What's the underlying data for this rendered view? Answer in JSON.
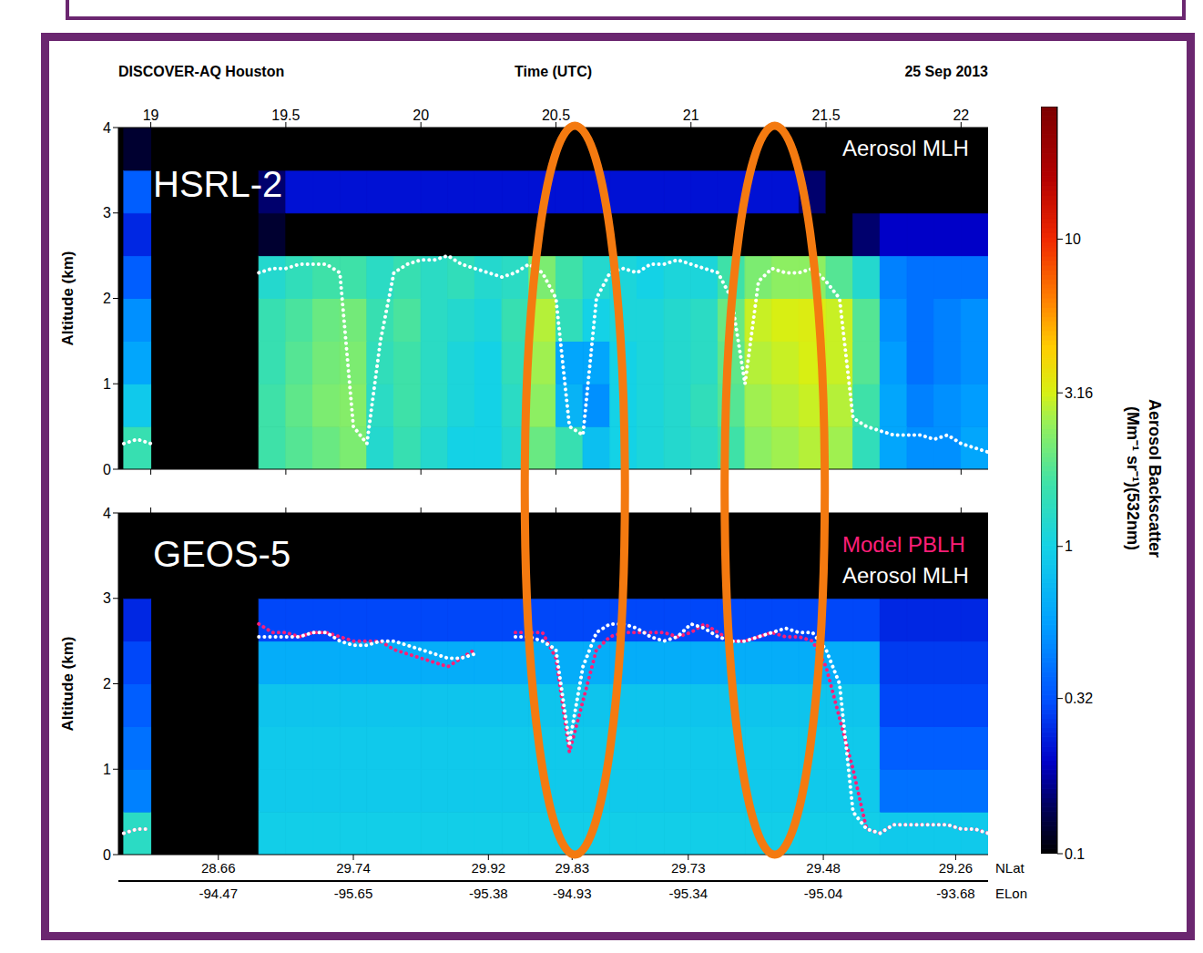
{
  "chart_data": {
    "type": "heatmap",
    "title": "DISCOVER-AQ Houston",
    "subtitle": "25 Sep 2013",
    "x_label": "Time (UTC)",
    "y_label": "Altitude (km)",
    "xlim": [
      18.88,
      22.1
    ],
    "xticks": [
      19,
      19.5,
      20,
      20.5,
      21,
      21.5,
      22
    ],
    "ylim": [
      0,
      4
    ],
    "yticks": [
      0,
      1,
      2,
      3,
      4
    ],
    "grid": false,
    "legend": "upper right",
    "track_axis": {
      "labels": [
        "NLat",
        "ELon"
      ],
      "ticks": [
        {
          "x": 19.25,
          "NLat": 28.66,
          "ELon": -94.47
        },
        {
          "x": 19.75,
          "NLat": 29.74,
          "ELon": -95.65
        },
        {
          "x": 20.25,
          "NLat": 29.92,
          "ELon": -95.38
        },
        {
          "x": 20.56,
          "NLat": 29.83,
          "ELon": -94.93
        },
        {
          "x": 20.99,
          "NLat": 29.73,
          "ELon": -95.34
        },
        {
          "x": 21.49,
          "NLat": 29.48,
          "ELon": -95.04
        },
        {
          "x": 21.98,
          "NLat": 29.26,
          "ELon": -93.68
        }
      ]
    },
    "highlights": [
      20.57,
      21.31
    ],
    "colorbar": {
      "label": "Aerosol Backscatter (Mm⁻¹ sr⁻¹)(532nm)",
      "range": [
        0.1,
        27
      ],
      "ticks": [
        0.1,
        0.32,
        1,
        3.16,
        10
      ],
      "log": true
    },
    "time_edges": [
      18.9,
      19,
      19.1,
      19.2,
      19.3,
      19.4,
      19.5,
      19.6,
      19.7,
      19.8,
      19.9,
      20,
      20.1,
      20.2,
      20.3,
      20.4,
      20.5,
      20.6,
      20.7,
      20.8,
      20.9,
      21,
      21.1,
      21.2,
      21.3,
      21.4,
      21.5,
      21.6,
      21.7,
      21.8,
      21.9,
      22,
      22.1
    ],
    "altitude_edges": [
      0,
      0.5,
      1,
      1.5,
      2,
      2.5,
      3,
      3.5,
      4
    ],
    "x": [
      18.9,
      18.95,
      19,
      19.05,
      19.1,
      19.15,
      19.2,
      19.25,
      19.3,
      19.35,
      19.4,
      19.45,
      19.5,
      19.55,
      19.6,
      19.65,
      19.7,
      19.75,
      19.8,
      19.85,
      19.9,
      19.95,
      20,
      20.05,
      20.1,
      20.15,
      20.2,
      20.25,
      20.3,
      20.35,
      20.4,
      20.45,
      20.5,
      20.55,
      20.6,
      20.65,
      20.7,
      20.75,
      20.8,
      20.85,
      20.9,
      20.95,
      21,
      21.05,
      21.1,
      21.15,
      21.2,
      21.25,
      21.3,
      21.35,
      21.4,
      21.45,
      21.5,
      21.55,
      21.6,
      21.65,
      21.7,
      21.75,
      21.8,
      21.85,
      21.9,
      21.95,
      22,
      22.05,
      22.1
    ],
    "panels": [
      {
        "title": "HSRL-2",
        "backscatter": [
          [
            1.5,
            null,
            null,
            null,
            null,
            1.6,
            1.8,
            2.0,
            2.2,
            1.2,
            1.5,
            1.2,
            1.0,
            1.0,
            1.2,
            2.0,
            1.5,
            0.8,
            1.0,
            1.1,
            1.2,
            1.3,
            1.6,
            2.4,
            2.6,
            2.8,
            2.6,
            1.4,
            0.6,
            0.5,
            0.5,
            0.6
          ],
          [
            0.9,
            null,
            null,
            null,
            null,
            1.6,
            1.9,
            2.2,
            2.3,
            1.3,
            1.6,
            1.3,
            1.1,
            1.0,
            1.3,
            2.4,
            0.7,
            0.5,
            1.0,
            1.1,
            1.2,
            1.4,
            1.8,
            2.6,
            2.8,
            3.0,
            2.8,
            1.6,
            0.6,
            0.45,
            0.5,
            0.55
          ],
          [
            0.6,
            null,
            null,
            null,
            null,
            1.5,
            1.8,
            2.1,
            2.2,
            1.4,
            1.6,
            1.3,
            1.1,
            1.0,
            1.4,
            2.6,
            0.6,
            0.6,
            1.0,
            1.1,
            1.2,
            1.3,
            1.9,
            2.8,
            3.0,
            3.2,
            3.0,
            1.8,
            0.55,
            0.4,
            0.45,
            0.5
          ],
          [
            0.5,
            null,
            null,
            null,
            null,
            1.5,
            1.7,
            2.0,
            2.1,
            1.5,
            1.7,
            1.3,
            1.2,
            1.1,
            1.5,
            2.8,
            1.4,
            1.0,
            1.1,
            1.1,
            1.2,
            1.3,
            2.0,
            3.0,
            3.2,
            3.3,
            3.0,
            1.8,
            0.5,
            0.4,
            0.45,
            0.5
          ],
          [
            0.35,
            null,
            null,
            null,
            null,
            1.2,
            1.4,
            1.6,
            1.6,
            1.3,
            1.5,
            1.3,
            1.4,
            1.2,
            1.3,
            2.2,
            1.6,
            1.2,
            1.1,
            1.0,
            1.1,
            1.1,
            1.6,
            2.2,
            2.4,
            2.4,
            1.8,
            1.2,
            0.45,
            0.4,
            0.4,
            0.4
          ],
          [
            0.25,
            null,
            null,
            null,
            null,
            0.12,
            0.1,
            0.1,
            0.1,
            0.1,
            0.1,
            0.1,
            0.1,
            0.1,
            0.1,
            0.1,
            0.1,
            0.1,
            0.1,
            0.1,
            0.1,
            0.1,
            0.1,
            0.1,
            0.1,
            0.1,
            0.1,
            0.15,
            0.2,
            0.2,
            0.2,
            0.2
          ],
          [
            0.35,
            null,
            null,
            null,
            null,
            0.15,
            0.22,
            0.22,
            0.22,
            0.22,
            0.22,
            0.22,
            0.22,
            0.22,
            0.22,
            0.22,
            0.22,
            0.22,
            0.22,
            0.22,
            0.22,
            0.22,
            0.22,
            0.22,
            0.22,
            0.15,
            0.1,
            0.1,
            0.1,
            0.1,
            0.1,
            0.1
          ],
          [
            0.12,
            null,
            null,
            null,
            null,
            0.1,
            0.1,
            0.1,
            0.1,
            0.1,
            0.1,
            0.1,
            0.1,
            0.1,
            0.1,
            0.1,
            0.1,
            0.1,
            0.1,
            0.1,
            0.1,
            0.1,
            0.1,
            0.1,
            0.1,
            0.1,
            0.1,
            0.1,
            0.1,
            0.1,
            0.1,
            0.1
          ]
        ],
        "series": [
          {
            "name": "Aerosol MLH",
            "color": "#ffffff",
            "line_style": "dotted",
            "values": [
              0.3,
              0.35,
              0.3,
              null,
              null,
              null,
              null,
              null,
              null,
              null,
              2.3,
              2.35,
              2.35,
              2.4,
              2.4,
              2.4,
              2.3,
              0.5,
              0.3,
              1.5,
              2.3,
              2.4,
              2.45,
              2.45,
              2.5,
              2.4,
              2.35,
              2.3,
              2.25,
              2.3,
              2.4,
              2.3,
              2.0,
              0.5,
              0.4,
              2.0,
              2.3,
              2.35,
              2.3,
              2.4,
              2.4,
              2.45,
              2.4,
              2.35,
              2.3,
              2.0,
              1.0,
              2.2,
              2.35,
              2.3,
              2.3,
              2.35,
              2.2,
              2.0,
              0.6,
              0.5,
              0.45,
              0.4,
              0.4,
              0.4,
              0.35,
              0.4,
              0.3,
              0.25,
              0.2
            ]
          }
        ]
      },
      {
        "title": "GEOS-5",
        "backscatter": [
          [
            1.3,
            null,
            null,
            null,
            null,
            0.95,
            0.95,
            0.95,
            0.95,
            0.95,
            0.95,
            0.95,
            0.95,
            0.95,
            0.95,
            0.95,
            0.95,
            0.95,
            0.95,
            0.95,
            0.95,
            0.95,
            0.95,
            0.95,
            0.95,
            0.95,
            0.95,
            0.95,
            0.9,
            0.9,
            0.9,
            0.9
          ],
          [
            0.45,
            null,
            null,
            null,
            null,
            0.9,
            0.9,
            0.9,
            0.9,
            0.9,
            0.9,
            0.9,
            0.9,
            0.9,
            0.9,
            0.9,
            0.9,
            0.9,
            0.9,
            0.9,
            0.9,
            0.9,
            0.9,
            0.9,
            0.9,
            0.9,
            0.9,
            0.9,
            0.4,
            0.4,
            0.4,
            0.4
          ],
          [
            0.4,
            null,
            null,
            null,
            null,
            0.9,
            0.9,
            0.9,
            0.9,
            0.9,
            0.9,
            0.9,
            0.9,
            0.9,
            0.9,
            0.9,
            0.9,
            0.9,
            0.9,
            0.9,
            0.9,
            0.9,
            0.9,
            0.9,
            0.9,
            0.9,
            0.9,
            0.9,
            0.35,
            0.35,
            0.35,
            0.35
          ],
          [
            0.35,
            null,
            null,
            null,
            null,
            0.85,
            0.85,
            0.85,
            0.85,
            0.85,
            0.85,
            0.85,
            0.85,
            0.85,
            0.85,
            0.85,
            0.85,
            0.85,
            0.85,
            0.85,
            0.85,
            0.85,
            0.85,
            0.85,
            0.85,
            0.85,
            0.85,
            0.85,
            0.3,
            0.3,
            0.3,
            0.3
          ],
          [
            0.3,
            null,
            null,
            null,
            null,
            0.65,
            0.65,
            0.65,
            0.65,
            0.65,
            0.65,
            0.65,
            0.65,
            0.65,
            0.65,
            0.65,
            0.65,
            0.65,
            0.65,
            0.65,
            0.65,
            0.65,
            0.65,
            0.65,
            0.65,
            0.65,
            0.65,
            0.65,
            0.28,
            0.28,
            0.28,
            0.28
          ],
          [
            0.25,
            null,
            null,
            null,
            null,
            0.3,
            0.3,
            0.3,
            0.3,
            0.3,
            0.3,
            0.3,
            0.3,
            0.3,
            0.3,
            0.3,
            0.3,
            0.3,
            0.3,
            0.3,
            0.3,
            0.3,
            0.3,
            0.3,
            0.3,
            0.3,
            0.3,
            0.3,
            0.25,
            0.25,
            0.25,
            0.25
          ],
          [
            0.1,
            null,
            null,
            null,
            null,
            0.1,
            0.1,
            0.1,
            0.1,
            0.1,
            0.1,
            0.1,
            0.1,
            0.1,
            0.1,
            0.1,
            0.1,
            0.1,
            0.1,
            0.1,
            0.1,
            0.1,
            0.1,
            0.1,
            0.1,
            0.1,
            0.1,
            0.1,
            0.1,
            0.1,
            0.1,
            0.1
          ],
          [
            0.1,
            null,
            null,
            null,
            null,
            0.1,
            0.1,
            0.1,
            0.1,
            0.1,
            0.1,
            0.1,
            0.1,
            0.1,
            0.1,
            0.1,
            0.1,
            0.1,
            0.1,
            0.1,
            0.1,
            0.1,
            0.1,
            0.1,
            0.1,
            0.1,
            0.1,
            0.1,
            0.1,
            0.1,
            0.1,
            0.1
          ]
        ],
        "series": [
          {
            "name": "Model PBLH",
            "color": "#ff1e78",
            "line_style": "dotted",
            "values": [
              0.25,
              0.3,
              0.3,
              null,
              null,
              null,
              null,
              null,
              null,
              null,
              2.7,
              2.6,
              2.6,
              2.55,
              2.6,
              2.6,
              2.55,
              2.5,
              2.5,
              2.5,
              2.4,
              2.35,
              2.3,
              2.25,
              2.2,
              2.3,
              2.4,
              null,
              null,
              2.6,
              2.6,
              2.6,
              2.3,
              1.2,
              1.8,
              2.4,
              2.55,
              2.6,
              2.6,
              2.6,
              2.6,
              2.55,
              2.6,
              2.7,
              2.6,
              2.5,
              2.5,
              2.55,
              2.6,
              2.55,
              2.55,
              2.5,
              2.2,
              1.6,
              1.0,
              0.3,
              0.25,
              0.35,
              0.35,
              0.35,
              0.35,
              0.35,
              0.3,
              0.3,
              0.25
            ]
          },
          {
            "name": "Aerosol MLH",
            "color": "#ffffff",
            "line_style": "dotted",
            "values": [
              0.25,
              0.3,
              0.3,
              null,
              null,
              null,
              null,
              null,
              null,
              null,
              2.55,
              2.55,
              2.55,
              2.55,
              2.6,
              2.6,
              2.5,
              2.45,
              2.45,
              2.5,
              2.5,
              2.45,
              2.4,
              2.35,
              2.3,
              2.3,
              2.35,
              null,
              null,
              2.55,
              2.55,
              2.5,
              2.4,
              1.3,
              2.2,
              2.6,
              2.7,
              2.7,
              2.65,
              2.55,
              2.5,
              2.55,
              2.7,
              2.65,
              2.55,
              2.5,
              2.5,
              2.55,
              2.6,
              2.65,
              2.6,
              2.6,
              2.4,
              2.0,
              0.5,
              0.3,
              0.25,
              0.35,
              0.35,
              0.35,
              0.35,
              0.35,
              0.3,
              0.3,
              0.25
            ]
          }
        ]
      }
    ]
  }
}
